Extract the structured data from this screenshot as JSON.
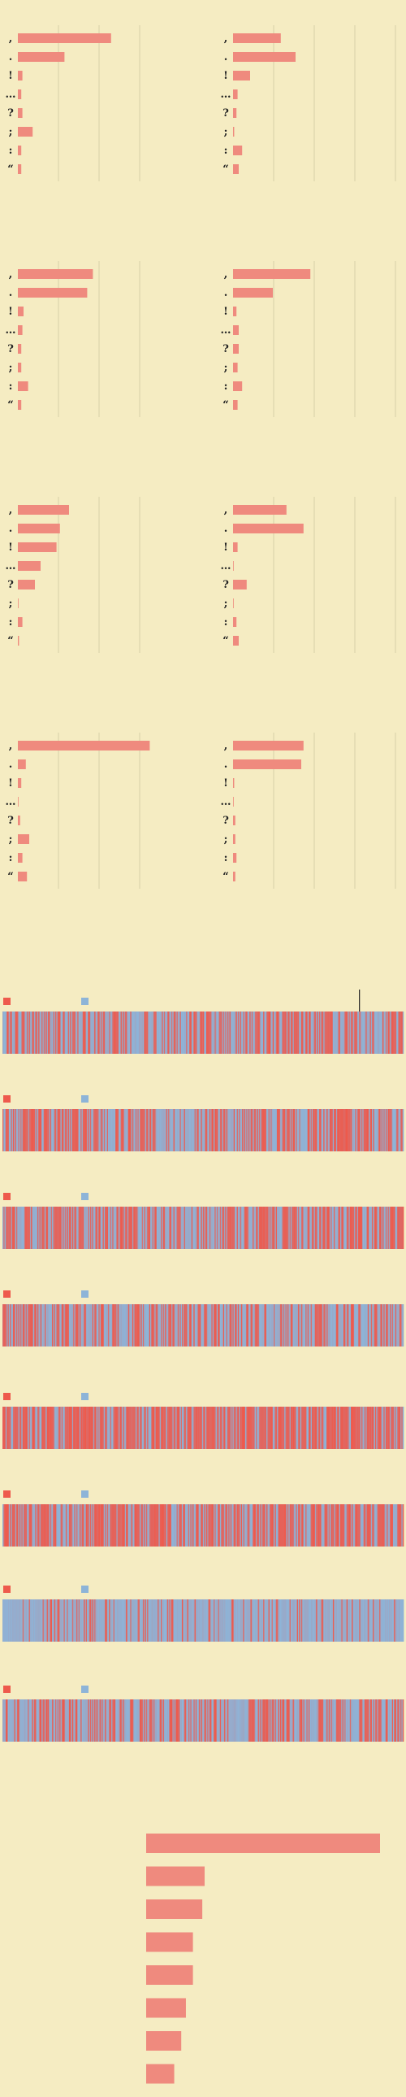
{
  "colors": {
    "background": "#f5ecc2",
    "bar": "#ef8a7e",
    "red": "#ee5a4c",
    "blue": "#8db4d8",
    "grid": "#d6cfa8",
    "text": "#222222"
  },
  "chart_data": [
    {
      "type": "bar",
      "title": "",
      "orientation": "horizontal",
      "grid": true,
      "ylim": [
        0,
        1
      ],
      "categories": [
        ",",
        ".",
        "!",
        "…",
        "?",
        ";",
        ":",
        "“"
      ],
      "panels": [
        {
          "values": [
            0.82,
            0.41,
            0.04,
            0.03,
            0.04,
            0.13,
            0.03,
            0.03
          ]
        },
        {
          "values": [
            0.42,
            0.55,
            0.15,
            0.04,
            0.03,
            0.01,
            0.08,
            0.05
          ]
        },
        {
          "values": [
            0.66,
            0.61,
            0.05,
            0.04,
            0.03,
            0.03,
            0.09,
            0.03
          ]
        },
        {
          "values": [
            0.68,
            0.35,
            0.03,
            0.05,
            0.05,
            0.04,
            0.08,
            0.04
          ]
        },
        {
          "values": [
            0.45,
            0.37,
            0.34,
            0.2,
            0.15,
            0.0,
            0.04,
            0.01
          ]
        },
        {
          "values": [
            0.47,
            0.62,
            0.04,
            0.0,
            0.12,
            0.0,
            0.03,
            0.05
          ]
        },
        {
          "values": [
            1.16,
            0.07,
            0.03,
            0.0,
            0.02,
            0.1,
            0.04,
            0.08
          ]
        },
        {
          "values": [
            0.62,
            0.6,
            0.01,
            0.0,
            0.02,
            0.02,
            0.03,
            0.02
          ]
        }
      ]
    },
    {
      "type": "heatmap",
      "title": "",
      "series": [
        {
          "name": "",
          "color": "#ee5a4c"
        },
        {
          "name": "",
          "color": "#8db4d8"
        }
      ],
      "strips": [
        {
          "red_share": 0.5,
          "cursor": 0.89
        },
        {
          "red_share": 0.6,
          "blue_block": [
            0.38,
            0.5
          ]
        },
        {
          "red_share": 0.58
        },
        {
          "red_share": 0.42
        },
        {
          "red_share": 0.72
        },
        {
          "red_share": 0.62
        },
        {
          "red_share": 0.18
        },
        {
          "red_share": 0.45
        }
      ]
    },
    {
      "type": "bar",
      "title": "",
      "orientation": "horizontal",
      "categories": [
        "",
        "",
        "",
        "",
        "",
        "",
        "",
        ""
      ],
      "values": [
        1.0,
        0.25,
        0.24,
        0.2,
        0.2,
        0.17,
        0.15,
        0.12
      ]
    }
  ]
}
